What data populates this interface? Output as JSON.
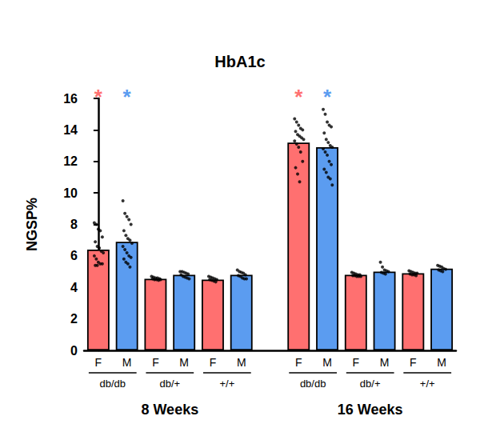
{
  "chart_data": {
    "type": "bar",
    "title": "HbA1c",
    "y_label": "NGSP%",
    "ylim": [
      0,
      16
    ],
    "yticks": [
      0,
      2,
      4,
      6,
      8,
      10,
      12,
      14,
      16
    ],
    "grid": false,
    "periods": [
      {
        "label": "8 Weeks",
        "groups": [
          {
            "label": "db/db",
            "categories": [
              "F",
              "M"
            ],
            "values": [
              6.4,
              6.9
            ],
            "colors": [
              "#ff7070",
              "#5b9cf0"
            ],
            "annotations": [
              "*",
              "*"
            ],
            "points": [
              [
                8.1,
                8.0,
                7.7,
                7.6,
                7.2,
                6.9,
                6.6,
                6.5,
                6.3,
                6.2,
                6.0,
                5.8,
                5.6,
                5.5,
                5.5,
                5.4,
                5.4
              ],
              [
                9.5,
                8.7,
                8.5,
                8.3,
                8.0,
                7.6,
                7.3,
                7.1,
                7.0,
                6.8,
                6.6,
                6.4,
                6.2,
                6.0,
                5.9,
                5.8,
                5.6,
                5.5,
                5.3
              ]
            ]
          },
          {
            "label": "db/+",
            "categories": [
              "F",
              "M"
            ],
            "values": [
              4.55,
              4.8
            ],
            "colors": [
              "#ff7070",
              "#5b9cf0"
            ],
            "annotations": [
              null,
              null
            ],
            "points": [
              [
                4.7,
                4.65,
                4.6,
                4.6,
                4.55,
                4.55,
                4.5,
                4.5,
                4.45,
                4.5
              ],
              [
                5.0,
                5.0,
                4.95,
                4.9,
                4.85,
                4.8,
                4.7,
                4.65,
                4.6,
                4.55
              ]
            ]
          },
          {
            "label": "+/+",
            "categories": [
              "F",
              "M"
            ],
            "values": [
              4.5,
              4.8
            ],
            "colors": [
              "#ff7070",
              "#5b9cf0"
            ],
            "annotations": [
              null,
              null
            ],
            "points": [
              [
                4.7,
                4.65,
                4.6,
                4.55,
                4.5,
                4.5,
                4.45,
                4.4,
                4.35
              ],
              [
                5.1,
                5.0,
                4.95,
                4.9,
                4.8,
                4.75,
                4.7,
                4.6,
                4.55,
                4.55
              ]
            ]
          }
        ]
      },
      {
        "label": "16 Weeks",
        "groups": [
          {
            "label": "db/db",
            "categories": [
              "F",
              "M"
            ],
            "values": [
              13.2,
              12.9
            ],
            "colors": [
              "#ff7070",
              "#5b9cf0"
            ],
            "annotations": [
              "*",
              "*"
            ],
            "points": [
              [
                14.7,
                14.5,
                14.3,
                14.1,
                14.0,
                13.9,
                13.7,
                13.6,
                13.5,
                13.4,
                13.3,
                13.1,
                12.9,
                12.6,
                12.0,
                11.6,
                11.2,
                10.7
              ],
              [
                15.3,
                15.0,
                14.5,
                14.3,
                14.2,
                13.8,
                13.4,
                13.2,
                13.0,
                12.9,
                12.8,
                12.6,
                12.4,
                12.0,
                11.8,
                11.5,
                11.3,
                11.0,
                10.9,
                10.5
              ]
            ]
          },
          {
            "label": "db/+",
            "categories": [
              "F",
              "M"
            ],
            "values": [
              4.8,
              5.0
            ],
            "colors": [
              "#ff7070",
              "#5b9cf0"
            ],
            "annotations": [
              null,
              null
            ],
            "points": [
              [
                4.95,
                4.9,
                4.85,
                4.8,
                4.8,
                4.75,
                4.75,
                4.7,
                4.7,
                4.7
              ],
              [
                5.6,
                5.3,
                5.1,
                5.05,
                5.0,
                4.95,
                4.9,
                4.85
              ]
            ]
          },
          {
            "label": "+/+",
            "categories": [
              "F",
              "M"
            ],
            "values": [
              4.9,
              5.2
            ],
            "colors": [
              "#ff7070",
              "#5b9cf0"
            ],
            "annotations": [
              null,
              null
            ],
            "points": [
              [
                5.05,
                5.0,
                4.95,
                4.9,
                4.9,
                4.85,
                4.8,
                4.8,
                4.75
              ],
              [
                5.4,
                5.35,
                5.3,
                5.2,
                5.15,
                5.1,
                5.05,
                5.0
              ]
            ]
          }
        ]
      }
    ]
  }
}
